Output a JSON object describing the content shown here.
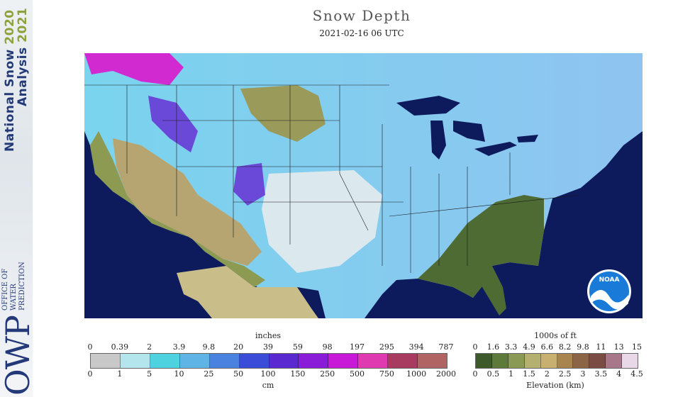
{
  "banner": {
    "line1_text": "National Snow",
    "line1_year": "2020",
    "line2_text": "Analysis",
    "line2_year": "2021",
    "owp": "OWP",
    "office_line1": "OFFICE OF",
    "office_line2": "WATER",
    "office_line3": "PREDICTION"
  },
  "header": {
    "title": "Snow Depth",
    "datetime": "2021-02-16 06 UTC"
  },
  "logo": {
    "text": "NOAA"
  },
  "snow_legend": {
    "top_unit": "inches",
    "bottom_unit": "cm",
    "inch_ticks": [
      "0",
      "0.39",
      "2",
      "3.9",
      "9.8",
      "20",
      "39",
      "59",
      "98",
      "197",
      "295",
      "394",
      "787"
    ],
    "cm_ticks": [
      "0",
      "1",
      "5",
      "10",
      "25",
      "50",
      "100",
      "150",
      "250",
      "500",
      "750",
      "1000",
      "2000"
    ],
    "colors": [
      "#c8c8c8",
      "#b4e4ec",
      "#4fd2e0",
      "#5fb4e6",
      "#4a82e0",
      "#3a4cd8",
      "#5a2ad0",
      "#8a1ed8",
      "#c818d8",
      "#e03ab0",
      "#a83c60",
      "#b06464"
    ]
  },
  "elev_legend": {
    "top_unit": "1000s of ft",
    "bottom_unit": "Elevation (km)",
    "ft_ticks": [
      "0",
      "1.6",
      "3.3",
      "4.9",
      "6.6",
      "8.2",
      "9.8",
      "11",
      "13",
      "15"
    ],
    "km_ticks": [
      "0",
      "0.5",
      "1",
      "1.5",
      "2",
      "2.5",
      "3",
      "3.5",
      "4",
      "4.5"
    ],
    "colors": [
      "#3d5a2a",
      "#5d7a3a",
      "#8a9a55",
      "#b6b070",
      "#c8b070",
      "#a8844e",
      "#8a6444",
      "#7a4c44",
      "#a8788a",
      "#e8d8e8"
    ]
  }
}
